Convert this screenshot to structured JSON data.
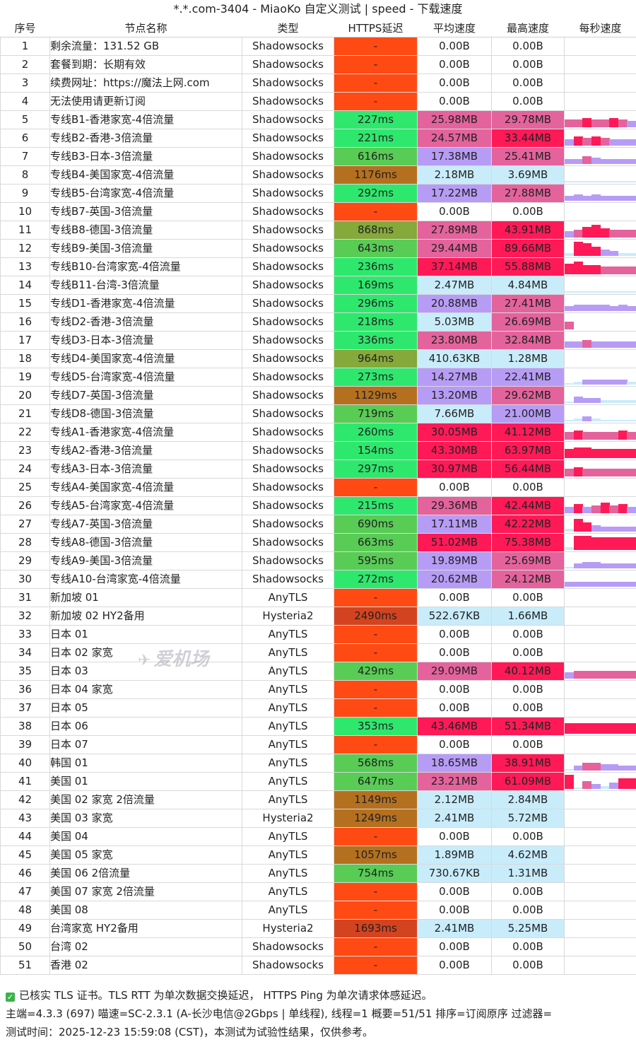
{
  "title": "*.*.com-3404 - MiaoKo 自定义测试 | speed - 下载速度",
  "headers": [
    "序号",
    "节点名称",
    "类型",
    "HTTPS延迟",
    "平均速度",
    "最高速度",
    "每秒速度"
  ],
  "colors": {
    "fail": "#ff4a14",
    "lat_good": "#2ee86d",
    "lat_mid": "#3fbf5a",
    "lat_ok": "#58cc55",
    "lat_warn": "#85a93a",
    "lat_slow": "#b5701f",
    "lat_bad": "#d4431f",
    "spd_low": "#c9ecfb",
    "spd_mid": "#b79cf6",
    "spd_hi": "#e4639c",
    "spd_top": "#ff1a57"
  },
  "rows": [
    {
      "i": "1",
      "name": "剩余流量：131.52 GB",
      "type": "Shadowsocks",
      "lat": "-",
      "avg": "0.00B",
      "max": "0.00B",
      "lc": "fail",
      "ac": "none",
      "mc": "none",
      "spark": []
    },
    {
      "i": "2",
      "name": "套餐到期：长期有效",
      "type": "Shadowsocks",
      "lat": "-",
      "avg": "0.00B",
      "max": "0.00B",
      "lc": "fail",
      "ac": "none",
      "mc": "none",
      "spark": []
    },
    {
      "i": "3",
      "name": "续费网址：https://魔法上网.com",
      "type": "Shadowsocks",
      "lat": "-",
      "avg": "0.00B",
      "max": "0.00B",
      "lc": "fail",
      "ac": "none",
      "mc": "none",
      "spark": []
    },
    {
      "i": "4",
      "name": "无法使用请更新订阅",
      "type": "Shadowsocks",
      "lat": "-",
      "avg": "0.00B",
      "max": "0.00B",
      "lc": "fail",
      "ac": "none",
      "mc": "none",
      "spark": []
    },
    {
      "i": "5",
      "name": "专线B1-香港家宽-4倍流量",
      "type": "Shadowsocks",
      "lat": "227ms",
      "avg": "25.98MB",
      "max": "29.78MB",
      "lc": "lat_good",
      "ac": "spd_hi",
      "mc": "spd_hi",
      "spark": [
        0.5,
        0.5,
        0.6,
        0.5,
        0.5,
        0.6,
        0.5,
        0.4
      ]
    },
    {
      "i": "6",
      "name": "专线B2-香港-3倍流量",
      "type": "Shadowsocks",
      "lat": "221ms",
      "avg": "24.57MB",
      "max": "33.44MB",
      "lc": "lat_good",
      "ac": "spd_hi",
      "mc": "spd_top",
      "spark": [
        0.4,
        0.6,
        0.5,
        0.6,
        0.5,
        0.4,
        0.4,
        0.4
      ]
    },
    {
      "i": "7",
      "name": "专线B3-日本-3倍流量",
      "type": "Shadowsocks",
      "lat": "616ms",
      "avg": "17.38MB",
      "max": "25.41MB",
      "lc": "lat_ok",
      "ac": "spd_mid",
      "mc": "spd_hi",
      "spark": [
        0.3,
        0.3,
        0.5,
        0.4,
        0.3,
        0.3,
        0.3,
        0.3
      ]
    },
    {
      "i": "8",
      "name": "专线B4-美国家宽-4倍流量",
      "type": "Shadowsocks",
      "lat": "1176ms",
      "avg": "2.18MB",
      "max": "3.69MB",
      "lc": "lat_slow",
      "ac": "spd_low",
      "mc": "spd_low",
      "spark": [
        0.1,
        0.1,
        0.1,
        0.1,
        0.1,
        0.1,
        0.1,
        0.1
      ]
    },
    {
      "i": "9",
      "name": "专线B5-台湾家宽-4倍流量",
      "type": "Shadowsocks",
      "lat": "292ms",
      "avg": "17.22MB",
      "max": "27.88MB",
      "lc": "lat_good",
      "ac": "spd_mid",
      "mc": "spd_hi",
      "spark": [
        0.3,
        0.4,
        0.3,
        0.4,
        0.3,
        0.3,
        0.3,
        0.3
      ]
    },
    {
      "i": "10",
      "name": "专线B7-英国-3倍流量",
      "type": "Shadowsocks",
      "lat": "-",
      "avg": "0.00B",
      "max": "0.00B",
      "lc": "fail",
      "ac": "none",
      "mc": "none",
      "spark": []
    },
    {
      "i": "11",
      "name": "专线B8-德国-3倍流量",
      "type": "Shadowsocks",
      "lat": "868ms",
      "avg": "27.89MB",
      "max": "43.91MB",
      "lc": "lat_warn",
      "ac": "spd_hi",
      "mc": "spd_top",
      "spark": [
        0.4,
        0.5,
        0.7,
        0.8,
        0.6,
        0.5,
        0.5,
        0.5
      ]
    },
    {
      "i": "12",
      "name": "专线B9-美国-3倍流量",
      "type": "Shadowsocks",
      "lat": "643ms",
      "avg": "29.44MB",
      "max": "89.66MB",
      "lc": "lat_ok",
      "ac": "spd_hi",
      "mc": "spd_top",
      "spark": [
        0.2,
        0.9,
        0.8,
        0.6,
        0.4,
        0.3,
        0.2,
        0.2
      ]
    },
    {
      "i": "13",
      "name": "专线B10-台湾家宽-4倍流量",
      "type": "Shadowsocks",
      "lat": "236ms",
      "avg": "37.14MB",
      "max": "55.88MB",
      "lc": "lat_good",
      "ac": "spd_top",
      "mc": "spd_top",
      "spark": [
        0.7,
        0.8,
        0.6,
        0.6,
        0.5,
        0.5,
        0.5,
        0.5
      ]
    },
    {
      "i": "14",
      "name": "专线B11-台湾-3倍流量",
      "type": "Shadowsocks",
      "lat": "169ms",
      "avg": "2.47MB",
      "max": "4.84MB",
      "lc": "lat_good",
      "ac": "spd_low",
      "mc": "spd_low",
      "spark": [
        0.1,
        0.1,
        0.1,
        0.1,
        0.1,
        0.1,
        0.1,
        0.1
      ]
    },
    {
      "i": "15",
      "name": "专线D1-香港家宽-4倍流量",
      "type": "Shadowsocks",
      "lat": "296ms",
      "avg": "20.88MB",
      "max": "27.41MB",
      "lc": "lat_good",
      "ac": "spd_mid",
      "mc": "spd_hi",
      "spark": [
        0.3,
        0.4,
        0.4,
        0.4,
        0.4,
        0.3,
        0.4,
        0.3
      ]
    },
    {
      "i": "16",
      "name": "专线D2-香港-3倍流量",
      "type": "Shadowsocks",
      "lat": "218ms",
      "avg": "5.03MB",
      "max": "26.69MB",
      "lc": "lat_good",
      "ac": "spd_low",
      "mc": "spd_hi",
      "spark": [
        0.5,
        0,
        0,
        0,
        0,
        0,
        0,
        0
      ]
    },
    {
      "i": "17",
      "name": "专线D3-日本-3倍流量",
      "type": "Shadowsocks",
      "lat": "336ms",
      "avg": "23.80MB",
      "max": "32.84MB",
      "lc": "lat_good",
      "ac": "spd_hi",
      "mc": "spd_hi",
      "spark": [
        0.4,
        0.4,
        0.5,
        0.4,
        0.4,
        0.4,
        0.4,
        0.4
      ]
    },
    {
      "i": "18",
      "name": "专线D4-美国家宽-4倍流量",
      "type": "Shadowsocks",
      "lat": "964ms",
      "avg": "410.63KB",
      "max": "1.28MB",
      "lc": "lat_warn",
      "ac": "spd_low",
      "mc": "spd_low",
      "spark": []
    },
    {
      "i": "19",
      "name": "专线D5-台湾家宽-4倍流量",
      "type": "Shadowsocks",
      "lat": "273ms",
      "avg": "14.27MB",
      "max": "22.41MB",
      "lc": "lat_good",
      "ac": "spd_mid",
      "mc": "spd_mid",
      "spark": [
        0.1,
        0.2,
        0.3,
        0.3,
        0.3,
        0.3,
        0.3,
        0.2
      ]
    },
    {
      "i": "20",
      "name": "专线D7-英国-3倍流量",
      "type": "Shadowsocks",
      "lat": "1129ms",
      "avg": "13.20MB",
      "max": "29.62MB",
      "lc": "lat_slow",
      "ac": "spd_mid",
      "mc": "spd_hi",
      "spark": [
        0.1,
        0.4,
        0.3,
        0.3,
        0.2,
        0.2,
        0.2,
        0.2
      ]
    },
    {
      "i": "21",
      "name": "专线D8-德国-3倍流量",
      "type": "Shadowsocks",
      "lat": "719ms",
      "avg": "7.66MB",
      "max": "21.00MB",
      "lc": "lat_ok",
      "ac": "spd_low",
      "mc": "spd_mid",
      "spark": [
        0.1,
        0.2,
        0.3,
        0.2,
        0.1,
        0.1,
        0.1,
        0.1
      ]
    },
    {
      "i": "22",
      "name": "专线A1-香港家宽-4倍流量",
      "type": "Shadowsocks",
      "lat": "260ms",
      "avg": "30.05MB",
      "max": "41.12MB",
      "lc": "lat_good",
      "ac": "spd_top",
      "mc": "spd_top",
      "spark": [
        0.5,
        0.6,
        0.5,
        0.5,
        0.5,
        0.5,
        0.6,
        0.5
      ]
    },
    {
      "i": "23",
      "name": "专线A2-香港-3倍流量",
      "type": "Shadowsocks",
      "lat": "154ms",
      "avg": "43.30MB",
      "max": "63.97MB",
      "lc": "lat_good",
      "ac": "spd_top",
      "mc": "spd_top",
      "spark": [
        0.6,
        0.7,
        0.7,
        0.6,
        0.6,
        0.6,
        0.6,
        0.6
      ]
    },
    {
      "i": "24",
      "name": "专线A3-日本-3倍流量",
      "type": "Shadowsocks",
      "lat": "297ms",
      "avg": "30.97MB",
      "max": "56.44MB",
      "lc": "lat_good",
      "ac": "spd_top",
      "mc": "spd_top",
      "spark": [
        0.5,
        0.6,
        0.5,
        0.5,
        0.5,
        0.5,
        0.5,
        0.5
      ]
    },
    {
      "i": "25",
      "name": "专线A4-美国家宽-4倍流量",
      "type": "Shadowsocks",
      "lat": "-",
      "avg": "0.00B",
      "max": "0.00B",
      "lc": "fail",
      "ac": "none",
      "mc": "none",
      "spark": []
    },
    {
      "i": "26",
      "name": "专线A5-台湾家宽-4倍流量",
      "type": "Shadowsocks",
      "lat": "215ms",
      "avg": "29.36MB",
      "max": "42.44MB",
      "lc": "lat_good",
      "ac": "spd_hi",
      "mc": "spd_top",
      "spark": [
        0.4,
        0.6,
        0.4,
        0.5,
        0.7,
        0.5,
        0.6,
        0.4
      ]
    },
    {
      "i": "27",
      "name": "专线A7-英国-3倍流量",
      "type": "Shadowsocks",
      "lat": "690ms",
      "avg": "17.11MB",
      "max": "42.22MB",
      "lc": "lat_ok",
      "ac": "spd_mid",
      "mc": "spd_top",
      "spark": [
        0.2,
        0.8,
        0.6,
        0.4,
        0.3,
        0.3,
        0.3,
        0.3
      ]
    },
    {
      "i": "28",
      "name": "专线A8-德国-3倍流量",
      "type": "Shadowsocks",
      "lat": "663ms",
      "avg": "51.02MB",
      "max": "75.38MB",
      "lc": "lat_ok",
      "ac": "spd_top",
      "mc": "spd_top",
      "spark": [
        0.2,
        0.9,
        0.9,
        0.8,
        0.8,
        0.8,
        0.8,
        0.8
      ]
    },
    {
      "i": "29",
      "name": "专线A9-美国-3倍流量",
      "type": "Shadowsocks",
      "lat": "595ms",
      "avg": "19.89MB",
      "max": "25.69MB",
      "lc": "lat_ok",
      "ac": "spd_mid",
      "mc": "spd_hi",
      "spark": [
        0.1,
        0.3,
        0.4,
        0.4,
        0.3,
        0.3,
        0.3,
        0.3
      ]
    },
    {
      "i": "30",
      "name": "专线A10-台湾家宽-4倍流量",
      "type": "Shadowsocks",
      "lat": "272ms",
      "avg": "20.62MB",
      "max": "24.12MB",
      "lc": "lat_good",
      "ac": "spd_mid",
      "mc": "spd_hi",
      "spark": [
        0.3,
        0.3,
        0.3,
        0.3,
        0.3,
        0.3,
        0.3,
        0.3
      ]
    },
    {
      "i": "31",
      "name": "新加坡 01",
      "type": "AnyTLS",
      "lat": "-",
      "avg": "0.00B",
      "max": "0.00B",
      "lc": "fail",
      "ac": "none",
      "mc": "none",
      "spark": []
    },
    {
      "i": "32",
      "name": "新加坡 02 HY2备用",
      "type": "Hysteria2",
      "lat": "2490ms",
      "avg": "522.67KB",
      "max": "1.66MB",
      "lc": "lat_bad",
      "ac": "spd_low",
      "mc": "spd_low",
      "spark": []
    },
    {
      "i": "33",
      "name": "日本 01",
      "type": "AnyTLS",
      "lat": "-",
      "avg": "0.00B",
      "max": "0.00B",
      "lc": "fail",
      "ac": "none",
      "mc": "none",
      "spark": []
    },
    {
      "i": "34",
      "name": "日本 02 家宽",
      "type": "AnyTLS",
      "lat": "-",
      "avg": "0.00B",
      "max": "0.00B",
      "lc": "fail",
      "ac": "none",
      "mc": "none",
      "spark": []
    },
    {
      "i": "35",
      "name": "日本 03",
      "type": "AnyTLS",
      "lat": "429ms",
      "avg": "29.09MB",
      "max": "40.12MB",
      "lc": "lat_ok",
      "ac": "spd_hi",
      "mc": "spd_top",
      "spark": [
        0.4,
        0.5,
        0.5,
        0.5,
        0.5,
        0.5,
        0.5,
        0.5
      ]
    },
    {
      "i": "36",
      "name": "日本 04 家宽",
      "type": "AnyTLS",
      "lat": "-",
      "avg": "0.00B",
      "max": "0.00B",
      "lc": "fail",
      "ac": "none",
      "mc": "none",
      "spark": []
    },
    {
      "i": "37",
      "name": "日本 05",
      "type": "AnyTLS",
      "lat": "-",
      "avg": "0.00B",
      "max": "0.00B",
      "lc": "fail",
      "ac": "none",
      "mc": "none",
      "spark": []
    },
    {
      "i": "38",
      "name": "日本 06",
      "type": "AnyTLS",
      "lat": "353ms",
      "avg": "43.46MB",
      "max": "51.34MB",
      "lc": "lat_good",
      "ac": "spd_top",
      "mc": "spd_top",
      "spark": [
        0.7,
        0.7,
        0.7,
        0.7,
        0.7,
        0.7,
        0.7,
        0.7
      ]
    },
    {
      "i": "39",
      "name": "日本 07",
      "type": "AnyTLS",
      "lat": "-",
      "avg": "0.00B",
      "max": "0.00B",
      "lc": "fail",
      "ac": "none",
      "mc": "none",
      "spark": []
    },
    {
      "i": "40",
      "name": "韩国 01",
      "type": "AnyTLS",
      "lat": "568ms",
      "avg": "18.65MB",
      "max": "38.91MB",
      "lc": "lat_ok",
      "ac": "spd_mid",
      "mc": "spd_top",
      "spark": [
        0.1,
        0.3,
        0.5,
        0.5,
        0.4,
        0.4,
        0.3,
        0.3
      ]
    },
    {
      "i": "41",
      "name": "美国 01",
      "type": "AnyTLS",
      "lat": "647ms",
      "avg": "23.21MB",
      "max": "61.09MB",
      "lc": "lat_ok",
      "ac": "spd_hi",
      "mc": "spd_top",
      "spark": [
        0.9,
        0.1,
        0.5,
        0.3,
        0.2,
        0.4,
        0.7,
        0.7
      ]
    },
    {
      "i": "42",
      "name": "美国 02 家宽 2倍流量",
      "type": "AnyTLS",
      "lat": "1149ms",
      "avg": "2.12MB",
      "max": "2.84MB",
      "lc": "lat_slow",
      "ac": "spd_low",
      "mc": "spd_low",
      "spark": []
    },
    {
      "i": "43",
      "name": "美国 03 家宽",
      "type": "Hysteria2",
      "lat": "1249ms",
      "avg": "2.41MB",
      "max": "5.72MB",
      "lc": "lat_slow",
      "ac": "spd_low",
      "mc": "spd_low",
      "spark": []
    },
    {
      "i": "44",
      "name": "美国 04",
      "type": "AnyTLS",
      "lat": "-",
      "avg": "0.00B",
      "max": "0.00B",
      "lc": "fail",
      "ac": "none",
      "mc": "none",
      "spark": []
    },
    {
      "i": "45",
      "name": "美国 05 家宽",
      "type": "AnyTLS",
      "lat": "1057ms",
      "avg": "1.89MB",
      "max": "4.62MB",
      "lc": "lat_slow",
      "ac": "spd_low",
      "mc": "spd_low",
      "spark": []
    },
    {
      "i": "46",
      "name": "美国 06 2倍流量",
      "type": "AnyTLS",
      "lat": "754ms",
      "avg": "730.67KB",
      "max": "1.31MB",
      "lc": "lat_ok",
      "ac": "spd_low",
      "mc": "spd_low",
      "spark": []
    },
    {
      "i": "47",
      "name": "美国 07 家宽 2倍流量",
      "type": "AnyTLS",
      "lat": "-",
      "avg": "0.00B",
      "max": "0.00B",
      "lc": "fail",
      "ac": "none",
      "mc": "none",
      "spark": []
    },
    {
      "i": "48",
      "name": "美国 08",
      "type": "AnyTLS",
      "lat": "-",
      "avg": "0.00B",
      "max": "0.00B",
      "lc": "fail",
      "ac": "none",
      "mc": "none",
      "spark": []
    },
    {
      "i": "49",
      "name": "台湾家宽 HY2备用",
      "type": "Hysteria2",
      "lat": "1693ms",
      "avg": "2.41MB",
      "max": "5.25MB",
      "lc": "lat_bad",
      "ac": "spd_low",
      "mc": "spd_low",
      "spark": []
    },
    {
      "i": "50",
      "name": "台湾 02",
      "type": "Shadowsocks",
      "lat": "-",
      "avg": "0.00B",
      "max": "0.00B",
      "lc": "fail",
      "ac": "none",
      "mc": "none",
      "spark": []
    },
    {
      "i": "51",
      "name": "香港 02",
      "type": "Shadowsocks",
      "lat": "-",
      "avg": "0.00B",
      "max": "0.00B",
      "lc": "fail",
      "ac": "none",
      "mc": "none",
      "spark": []
    }
  ],
  "watermark": "爱机场",
  "footer": {
    "line1": "已核实 TLS 证书。TLS RTT 为单次数据交换延迟， HTTPS Ping 为单次请求体感延迟。",
    "line2": "主端=4.3.3 (697) 喵速=SC-2.3.1 (A-长沙电信@2Gbps | 单线程), 线程=1 概要=51/51 排序=订阅原序 过滤器=",
    "line3": "测试时间：2025-12-23 15:59:08 (CST)，本测试为试验性结果，仅供参考。"
  }
}
